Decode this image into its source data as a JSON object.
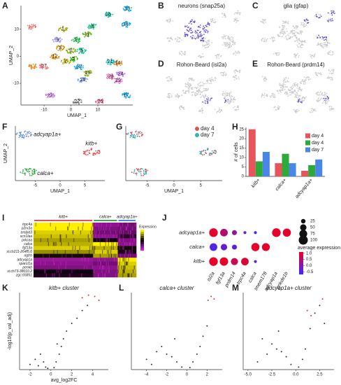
{
  "chart_data": [
    {
      "panel": "A",
      "type": "umap",
      "xlabel": "UMAP_1",
      "ylabel": "UMAP_2",
      "xlim": [
        -18.6,
        23
      ],
      "ylim": [
        -18,
        18.75
      ],
      "xticks": [
        -10,
        0,
        10
      ],
      "yticks": [
        -10,
        0,
        10
      ],
      "clusters": [
        {
          "label": null,
          "x": -14.7,
          "y": 11,
          "color": "#e8766d"
        },
        {
          "label": "0",
          "x": 0,
          "y": 2,
          "color": "#7cae00"
        },
        {
          "label": "1",
          "x": -3,
          "y": 10,
          "color": "#a3a500"
        },
        {
          "label": "2",
          "x": 2,
          "y": 6,
          "color": "#00ba38"
        },
        {
          "label": "3",
          "x": -4,
          "y": 3,
          "color": "#d89000"
        },
        {
          "label": "5",
          "x": 1,
          "y": -1,
          "color": "#39b600"
        },
        {
          "label": "6",
          "x": 4,
          "y": 2,
          "color": "#00c08b"
        },
        {
          "label": "7",
          "x": -2,
          "y": -2,
          "color": "#b79f00"
        },
        {
          "label": "9",
          "x": -5,
          "y": 6,
          "color": "#9590ff"
        },
        {
          "label": "8",
          "x": 8,
          "y": 11,
          "color": "#00bf7d"
        },
        {
          "label": "11",
          "x": 6,
          "y": 8,
          "color": "#64b200"
        },
        {
          "label": "12",
          "x": -6,
          "y": 0,
          "color": "#e58700"
        },
        {
          "label": "13",
          "x": 3,
          "y": -4,
          "color": "#00b0f6"
        },
        {
          "label": "10",
          "x": 13.9,
          "y": 15.3,
          "color": "#00c1a3"
        },
        {
          "label": "15",
          "x": 21,
          "y": 17.5,
          "color": "#00b4ef"
        },
        {
          "label": "16",
          "x": 20.4,
          "y": 11.8,
          "color": "#00a9ff"
        },
        {
          "label": null,
          "x": -14.3,
          "y": -3.7,
          "color": "#e7861b"
        },
        {
          "label": "27",
          "x": -10,
          "y": -3.7,
          "color": "#fc717f"
        },
        {
          "label": "14",
          "x": 17.4,
          "y": -2.5,
          "color": "#e7861b"
        },
        {
          "label": "21",
          "x": 14.5,
          "y": -2,
          "color": "#00bfc4"
        },
        {
          "label": "19",
          "x": 6.2,
          "y": -6.2,
          "color": "#8ab504"
        },
        {
          "label": "26",
          "x": 4.4,
          "y": -8.7,
          "color": "#619cff"
        },
        {
          "label": "28",
          "x": 14.8,
          "y": -7.5,
          "color": "#ff62bc"
        },
        {
          "label": "24",
          "x": 18.5,
          "y": -6.5,
          "color": "#c77cff"
        },
        {
          "label": "29",
          "x": 17.5,
          "y": -9,
          "color": "#f564e3"
        },
        {
          "label": "23",
          "x": -7.8,
          "y": -14.5,
          "color": "#db72fb"
        },
        {
          "label": "22",
          "x": 2.3,
          "y": -16.7,
          "color": "#888888"
        },
        {
          "label": "25",
          "x": 10.9,
          "y": -16.7,
          "color": "#ff6c91"
        },
        {
          "label": "17",
          "x": 20.5,
          "y": -14.5,
          "color": "#00a5ff"
        }
      ]
    },
    {
      "panel": "B",
      "type": "feature",
      "title": "neurons (snap25a)"
    },
    {
      "panel": "C",
      "type": "feature",
      "title": "glia (gfap)"
    },
    {
      "panel": "D",
      "type": "feature",
      "title": "Rohon-Beard (isl2a)"
    },
    {
      "panel": "E",
      "type": "feature",
      "title": "Rohon-Beard (prdm14)"
    },
    {
      "panel": "F",
      "type": "umap",
      "xlabel": "UMAP_1",
      "ylabel": "UMAP_2",
      "xlim": [
        -9,
        9
      ],
      "ylim": [
        -8,
        8
      ],
      "xticks": [
        -5,
        0,
        5
      ],
      "clusters": [
        {
          "label": "adcyap1a+",
          "x": -7.3,
          "y": 5.5,
          "color": "#6a8fd8"
        },
        {
          "label": "kitb+",
          "x": 6.3,
          "y": 0.3,
          "color": "#e05050"
        },
        {
          "label": "calca+",
          "x": -6.3,
          "y": -5.5,
          "color": "#3aa84a"
        }
      ]
    },
    {
      "panel": "G",
      "type": "umap",
      "xlabel": "UMAP_1",
      "xlim": [
        -9,
        9
      ],
      "ylim": [
        -8,
        8
      ],
      "xticks": [
        -5,
        0,
        5
      ],
      "series": [
        {
          "name": "day 4",
          "color": "#e05050"
        },
        {
          "name": "day 7",
          "color": "#2bb5b5"
        }
      ],
      "clusters": [
        {
          "label": null,
          "x": -7.3,
          "y": 5.5,
          "color": null
        },
        {
          "label": null,
          "x": 6.3,
          "y": 0.3,
          "color": null
        },
        {
          "label": null,
          "x": -6.3,
          "y": -5.5,
          "color": null
        }
      ]
    },
    {
      "panel": "H",
      "type": "bar",
      "ylabel": "# of cells",
      "categories": [
        "kitb+",
        "calca+",
        "adcyap1a+"
      ],
      "series": [
        {
          "name": "day 4",
          "color": "#e8545c",
          "values": [
            25,
            7,
            3
          ]
        },
        {
          "name": "day 4",
          "color": "#2eaa3a",
          "values": [
            8,
            12,
            6
          ]
        },
        {
          "name": "day 7",
          "color": "#4a86e8",
          "values": [
            13,
            7,
            9
          ]
        }
      ],
      "ylim": [
        0,
        26
      ],
      "yticks": [
        0,
        5,
        10,
        15,
        20,
        25
      ]
    },
    {
      "panel": "I",
      "type": "heatmap",
      "legend_title": "Expression",
      "groups": [
        "kitb+",
        "calca+",
        "adcyap1a+"
      ],
      "genes": [
        "trpc4a",
        "p2rx3a",
        "emlpd3",
        "scn1laa",
        "prkcaa",
        "calca",
        "fgf13a",
        "si:ch211-264f5.6",
        "ngfrb",
        "adcyap1a",
        "sparcl1a",
        "penkb",
        "si:ch73-38010.2",
        "zgc:65851"
      ],
      "clim": [
        -1,
        2
      ],
      "values": [
        [
          2,
          -0.5,
          -0.3
        ],
        [
          2,
          -0.4,
          -0.3
        ],
        [
          1.8,
          -0.3,
          -0.2
        ],
        [
          1.7,
          -0.5,
          0.2
        ],
        [
          1.5,
          0.4,
          -0.4
        ],
        [
          1.6,
          2,
          -0.5
        ],
        [
          1.8,
          1.6,
          0.6
        ],
        [
          1.4,
          1.8,
          0.3
        ],
        [
          0.6,
          1.5,
          -0.3
        ],
        [
          -0.6,
          -0.5,
          2
        ],
        [
          -0.5,
          -0.3,
          1.8
        ],
        [
          -0.4,
          -0.5,
          1.7
        ],
        [
          0.4,
          -0.4,
          1.6
        ],
        [
          0.3,
          -0.4,
          1.5
        ]
      ]
    },
    {
      "panel": "J",
      "type": "dot",
      "rows": [
        "adcyap1a+",
        "calca+",
        "kitb+"
      ],
      "columns": [
        "isl2a",
        "fgf13a",
        "prdm14",
        "trpc4a",
        "calca",
        "tmem178",
        "adcyap1a",
        "pnkde1b"
      ],
      "pct": [
        [
          90,
          70,
          30,
          10,
          10,
          null,
          90,
          80
        ],
        [
          70,
          50,
          30,
          null,
          80,
          75,
          null,
          null
        ],
        [
          90,
          85,
          60,
          70,
          10,
          null,
          null,
          null
        ]
      ],
      "avg": [
        [
          1.0,
          0.5,
          0.2,
          -0.2,
          -0.5,
          null,
          1.0,
          1.0
        ],
        [
          -0.5,
          -0.3,
          -0.4,
          null,
          1.0,
          1.0,
          null,
          null
        ],
        [
          1.0,
          1.0,
          0.7,
          0.9,
          -0.5,
          null,
          null,
          null
        ]
      ],
      "size_ticks": [
        25,
        50,
        75,
        100
      ],
      "color_title": "average expression",
      "clim": [
        -0.7,
        1.1
      ],
      "color_ticks": [
        {
          "value": 1.0,
          "label": "1.0"
        },
        {
          "value": 0.5,
          "label": "0.5"
        },
        {
          "value": 0.0,
          "label": "0.0"
        },
        -0.5
      ]
    },
    {
      "panel": "K",
      "type": "volcano",
      "title": "kitb+ cluster",
      "xlabel": "avg_log2FC",
      "ylabel": "-log10(p_val_adj)",
      "xlim": [
        -3,
        5.5
      ],
      "ylim": [
        0,
        300
      ],
      "xticks": [
        -2,
        0,
        2,
        4
      ],
      "series": [
        {
          "color": "#333333",
          "x": [
            -2,
            -1.5,
            -1,
            -0.7,
            -0.5,
            -0.3,
            0.3,
            0.5,
            0.8,
            1,
            1.2,
            1.5,
            2,
            2.5,
            3,
            3.5,
            -1.2,
            0.6
          ],
          "values": [
            20,
            40,
            60,
            30,
            10,
            5,
            8,
            30,
            60,
            90,
            120,
            150,
            180,
            200,
            230,
            250,
            15,
            100
          ]
        },
        {
          "color": "#e03030",
          "x": [
            3,
            3.6,
            4.2,
            4.6
          ],
          "values": [
            280,
            290,
            285,
            270
          ]
        }
      ]
    },
    {
      "panel": "L",
      "type": "volcano",
      "title": "calca+ cluster",
      "xlim": [
        -5.5,
        3.5
      ],
      "ylim": [
        0,
        300
      ],
      "xticks": [
        -4,
        -2,
        0,
        2
      ],
      "series": [
        {
          "color": "#333333",
          "x": [
            -4,
            -3,
            -2.5,
            -2,
            -1.5,
            -1,
            -0.5,
            0.3,
            0.6,
            1,
            1.3,
            1.6,
            2,
            -3.5,
            -1.2
          ],
          "values": [
            40,
            70,
            90,
            60,
            50,
            30,
            10,
            8,
            30,
            60,
            90,
            130,
            170,
            20,
            120
          ]
        },
        {
          "color": "#e03030",
          "x": [
            2.1,
            2.4,
            2.7
          ],
          "values": [
            270,
            285,
            275
          ]
        }
      ]
    },
    {
      "panel": "M",
      "type": "volcano",
      "title": "adcyap1a+ cluster",
      "xlim": [
        -5.5,
        4
      ],
      "ylim": [
        0,
        300
      ],
      "xticks": [
        {
          "value": -5,
          "label": "-5.0"
        },
        -2.5,
        {
          "value": 0,
          "label": "0.0"
        },
        2.5
      ],
      "series": [
        {
          "color": "#333333",
          "x": [
            -4,
            -3,
            -2.5,
            -2,
            -1.5,
            -1,
            -0.5,
            0.3,
            0.7,
            1,
            1.5,
            2,
            2.5,
            3,
            -3.5,
            -1.8
          ],
          "values": [
            30,
            60,
            100,
            80,
            70,
            50,
            20,
            10,
            40,
            80,
            160,
            220,
            250,
            180,
            120,
            150
          ]
        },
        {
          "color": "#e03030",
          "x": [
            1.2,
            1.6,
            2.8
          ],
          "values": [
            230,
            210,
            275
          ]
        }
      ]
    }
  ]
}
